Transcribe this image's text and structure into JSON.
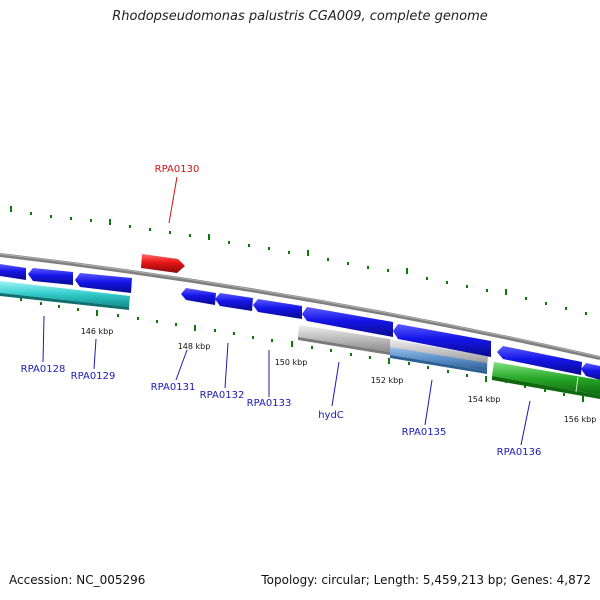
{
  "title": "Rhodopseudomonas palustris CGA009, complete genome",
  "footer": {
    "accession": "Accession: NC_005296",
    "summary": "Topology: circular; Length: 5,459,213 bp; Genes: 4,872"
  },
  "ticks": [
    "146 kbp",
    "148 kbp",
    "150 kbp",
    "152 kbp",
    "154 kbp",
    "156 kbp"
  ],
  "genes": [
    "RPA0128",
    "RPA0129",
    "RPA0130",
    "RPA0131",
    "RPA0132",
    "RPA0133",
    "hydC",
    "RPA0135",
    "RPA0136"
  ],
  "colors": {
    "backbone": "#808080",
    "cds": "#1515e8",
    "highlight": "#e81515",
    "cyan_track": "#33cccc",
    "gray_track": "#bdbdbd",
    "steel_track": "#5b8fc7",
    "green_track": "#27a827",
    "tick": "#0a7a0a",
    "label": "#1a1ab5"
  }
}
